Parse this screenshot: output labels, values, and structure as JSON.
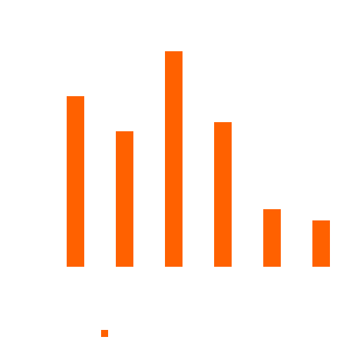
{
  "chart_data": {
    "type": "bar",
    "categories": [
      "",
      "",
      "",
      "",
      "",
      ""
    ],
    "values": [
      243,
      193,
      307,
      206,
      82,
      66
    ],
    "ylim": [
      0,
      330
    ],
    "grid": false,
    "legend": {
      "placement": "bottom",
      "entries": [
        {
          "name": "",
          "color": "#ff6100"
        }
      ]
    },
    "colors": {
      "bar": "#ff6100",
      "background": "#ffffff"
    }
  }
}
